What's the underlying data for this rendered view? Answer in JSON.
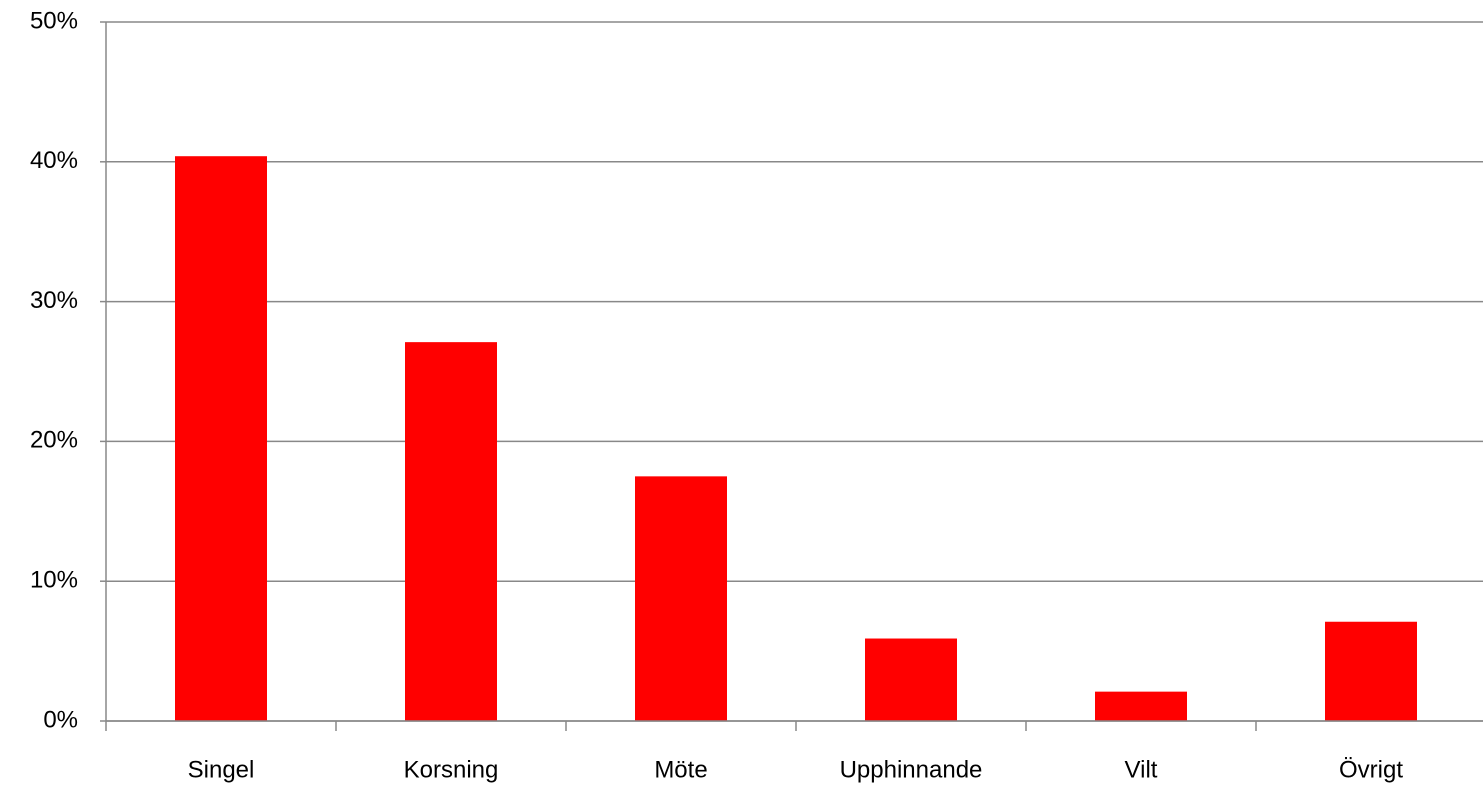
{
  "chart_data": {
    "type": "bar",
    "categories": [
      "Singel",
      "Korsning",
      "Möte",
      "Upphinnande",
      "Vilt",
      "Övrigt"
    ],
    "values": [
      40.4,
      27.1,
      17.5,
      5.9,
      2.1,
      7.1
    ],
    "color": "#ff0000",
    "ylim": [
      0,
      50
    ],
    "yticks": [
      {
        "value": 0,
        "label": "0%"
      },
      {
        "value": 10,
        "label": "10%"
      },
      {
        "value": 20,
        "label": "20%"
      },
      {
        "value": 30,
        "label": "30%"
      },
      {
        "value": 40,
        "label": "40%"
      },
      {
        "value": 50,
        "label": "50%"
      }
    ],
    "grid": true
  }
}
